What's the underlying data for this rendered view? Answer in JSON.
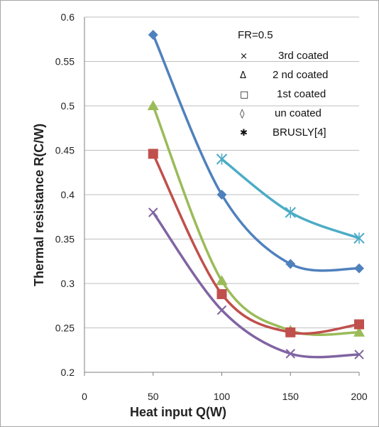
{
  "chart_data": {
    "type": "line",
    "title": "",
    "xlabel": "Heat input  Q(W)",
    "ylabel": "Thermal resistance  R(C/W)",
    "xlim": [
      0,
      200
    ],
    "ylim": [
      0.2,
      0.6
    ],
    "x_ticks": [
      0,
      50,
      100,
      150,
      200
    ],
    "y_ticks": [
      0.2,
      0.25,
      0.3,
      0.35,
      0.4,
      0.45,
      0.5,
      0.55,
      0.6
    ],
    "grid": "horizontal",
    "legend_position": "top-right",
    "legend_header": "FR=0.5",
    "series": [
      {
        "name": "3rd coated",
        "symbol": "×",
        "marker": "x",
        "color": "#8064a2",
        "x": [
          50,
          100,
          150,
          200
        ],
        "values": [
          0.38,
          0.27,
          0.221,
          0.22
        ]
      },
      {
        "name": "2 nd coated",
        "symbol": "Δ",
        "marker": "triangle",
        "color": "#9bbb59",
        "x": [
          50,
          100,
          150,
          200
        ],
        "values": [
          0.5,
          0.303,
          0.247,
          0.245
        ]
      },
      {
        "name": "1st coated",
        "symbol": "□",
        "marker": "square",
        "color": "#c0504d",
        "x": [
          50,
          100,
          150,
          200
        ],
        "values": [
          0.446,
          0.288,
          0.245,
          0.254
        ]
      },
      {
        "name": "un coated",
        "symbol": "◊",
        "marker": "diamond",
        "color": "#4f81bd",
        "x": [
          50,
          100,
          150,
          200
        ],
        "values": [
          0.58,
          0.4,
          0.322,
          0.317
        ]
      },
      {
        "name": "BRUSLY[4]",
        "symbol": "✱",
        "marker": "star",
        "color": "#4bacc6",
        "x": [
          100,
          150,
          200
        ],
        "values": [
          0.44,
          0.38,
          0.351
        ]
      }
    ]
  }
}
